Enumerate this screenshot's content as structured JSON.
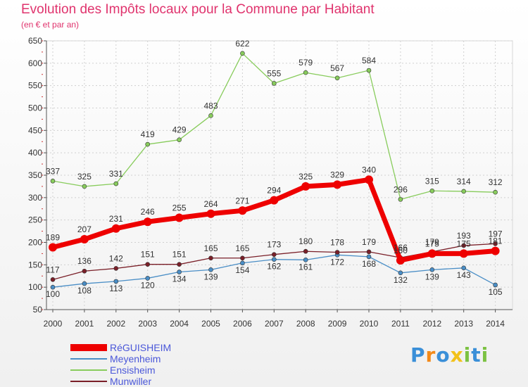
{
  "title": "Evolution des Impôts locaux pour la Commune par Habitant",
  "subtitle": "(en € et par an)",
  "brand": {
    "letters": [
      "P",
      "r",
      "o",
      "x",
      "i",
      "t",
      "i"
    ],
    "colors": [
      "#3a8fd8",
      "#f28a1a",
      "#3a8fd8",
      "#f2c21a",
      "#7cc242",
      "#3a8fd8",
      "#7cc242"
    ]
  },
  "chart_data": {
    "type": "line",
    "title": "Evolution des Impôts locaux pour la Commune par Habitant",
    "xlabel": "",
    "ylabel": "",
    "ylim": [
      50,
      650
    ],
    "yticks": [
      50,
      100,
      150,
      200,
      250,
      300,
      350,
      400,
      450,
      500,
      550,
      600,
      650
    ],
    "categories": [
      "2000",
      "2001",
      "2002",
      "2003",
      "2004",
      "2005",
      "2006",
      "2007",
      "2008",
      "2009",
      "2010",
      "2011",
      "2012",
      "2013",
      "2014"
    ],
    "series": [
      {
        "name": "RéGUISHEIM",
        "color": "#ee0000",
        "values": [
          189,
          207,
          231,
          246,
          255,
          264,
          271,
          294,
          325,
          329,
          340,
          160,
          175,
          175,
          181
        ],
        "labels": [
          "189",
          "207",
          "231",
          "246",
          "255",
          "264",
          "271",
          "294",
          "325",
          "329",
          "340",
          "160",
          "175",
          "175",
          "181"
        ]
      },
      {
        "name": "Meyenheim",
        "color": "#4a8ec6",
        "values": [
          100,
          108,
          113,
          120,
          134,
          139,
          154,
          162,
          161,
          172,
          168,
          132,
          139,
          143,
          105
        ],
        "labels": [
          "100",
          "108",
          "113",
          "120",
          "134",
          "139",
          "154",
          "162",
          "161",
          "172",
          "168",
          "132",
          "139",
          "143",
          "105"
        ]
      },
      {
        "name": "Ensisheim",
        "color": "#88cc5c",
        "values": [
          337,
          325,
          331,
          419,
          429,
          483,
          622,
          555,
          579,
          567,
          584,
          296,
          315,
          314,
          312
        ],
        "labels": [
          "337",
          "325",
          "331",
          "419",
          "429",
          "483",
          "622",
          "555",
          "579",
          "567",
          "584",
          "296",
          "315",
          "314",
          "312"
        ]
      },
      {
        "name": "Munwiller",
        "color": "#7a1f28",
        "values": [
          117,
          136,
          142,
          151,
          151,
          165,
          165,
          173,
          180,
          178,
          179,
          166,
          179,
          193,
          197
        ],
        "labels": [
          "117",
          "136",
          "142",
          "151",
          "151",
          "165",
          "165",
          "173",
          "180",
          "178",
          "179",
          "166",
          "179",
          "193",
          "197"
        ]
      }
    ]
  }
}
